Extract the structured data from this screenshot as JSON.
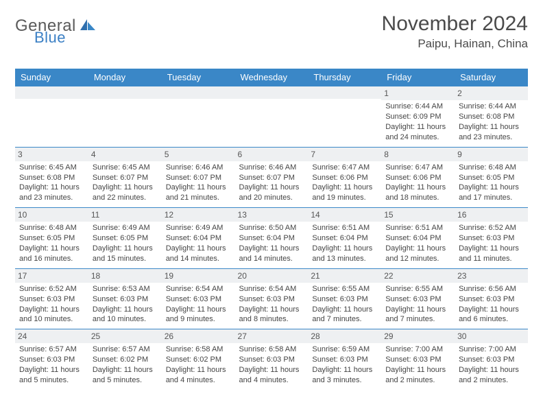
{
  "brand": {
    "word1": "General",
    "word2": "Blue"
  },
  "title": "November 2024",
  "location": "Paipu, Hainan, China",
  "colors": {
    "header_bg": "#3a87c7",
    "header_text": "#ffffff",
    "daynum_bg": "#eef0f2",
    "row_border": "#3a87c7",
    "brand_gray": "#5a5a5a",
    "brand_blue": "#3a7fc4",
    "text": "#444444",
    "page_bg": "#ffffff"
  },
  "fonts": {
    "title_pt": 30,
    "location_pt": 17,
    "dayhead_pt": 13,
    "daynum_pt": 12,
    "body_pt": 11
  },
  "day_headers": [
    "Sunday",
    "Monday",
    "Tuesday",
    "Wednesday",
    "Thursday",
    "Friday",
    "Saturday"
  ],
  "weeks": [
    [
      {
        "num": "",
        "lines": [
          "",
          "",
          "",
          ""
        ]
      },
      {
        "num": "",
        "lines": [
          "",
          "",
          "",
          ""
        ]
      },
      {
        "num": "",
        "lines": [
          "",
          "",
          "",
          ""
        ]
      },
      {
        "num": "",
        "lines": [
          "",
          "",
          "",
          ""
        ]
      },
      {
        "num": "",
        "lines": [
          "",
          "",
          "",
          ""
        ]
      },
      {
        "num": "1",
        "lines": [
          "Sunrise: 6:44 AM",
          "Sunset: 6:09 PM",
          "Daylight: 11 hours",
          "and 24 minutes."
        ]
      },
      {
        "num": "2",
        "lines": [
          "Sunrise: 6:44 AM",
          "Sunset: 6:08 PM",
          "Daylight: 11 hours",
          "and 23 minutes."
        ]
      }
    ],
    [
      {
        "num": "3",
        "lines": [
          "Sunrise: 6:45 AM",
          "Sunset: 6:08 PM",
          "Daylight: 11 hours",
          "and 23 minutes."
        ]
      },
      {
        "num": "4",
        "lines": [
          "Sunrise: 6:45 AM",
          "Sunset: 6:07 PM",
          "Daylight: 11 hours",
          "and 22 minutes."
        ]
      },
      {
        "num": "5",
        "lines": [
          "Sunrise: 6:46 AM",
          "Sunset: 6:07 PM",
          "Daylight: 11 hours",
          "and 21 minutes."
        ]
      },
      {
        "num": "6",
        "lines": [
          "Sunrise: 6:46 AM",
          "Sunset: 6:07 PM",
          "Daylight: 11 hours",
          "and 20 minutes."
        ]
      },
      {
        "num": "7",
        "lines": [
          "Sunrise: 6:47 AM",
          "Sunset: 6:06 PM",
          "Daylight: 11 hours",
          "and 19 minutes."
        ]
      },
      {
        "num": "8",
        "lines": [
          "Sunrise: 6:47 AM",
          "Sunset: 6:06 PM",
          "Daylight: 11 hours",
          "and 18 minutes."
        ]
      },
      {
        "num": "9",
        "lines": [
          "Sunrise: 6:48 AM",
          "Sunset: 6:05 PM",
          "Daylight: 11 hours",
          "and 17 minutes."
        ]
      }
    ],
    [
      {
        "num": "10",
        "lines": [
          "Sunrise: 6:48 AM",
          "Sunset: 6:05 PM",
          "Daylight: 11 hours",
          "and 16 minutes."
        ]
      },
      {
        "num": "11",
        "lines": [
          "Sunrise: 6:49 AM",
          "Sunset: 6:05 PM",
          "Daylight: 11 hours",
          "and 15 minutes."
        ]
      },
      {
        "num": "12",
        "lines": [
          "Sunrise: 6:49 AM",
          "Sunset: 6:04 PM",
          "Daylight: 11 hours",
          "and 14 minutes."
        ]
      },
      {
        "num": "13",
        "lines": [
          "Sunrise: 6:50 AM",
          "Sunset: 6:04 PM",
          "Daylight: 11 hours",
          "and 14 minutes."
        ]
      },
      {
        "num": "14",
        "lines": [
          "Sunrise: 6:51 AM",
          "Sunset: 6:04 PM",
          "Daylight: 11 hours",
          "and 13 minutes."
        ]
      },
      {
        "num": "15",
        "lines": [
          "Sunrise: 6:51 AM",
          "Sunset: 6:04 PM",
          "Daylight: 11 hours",
          "and 12 minutes."
        ]
      },
      {
        "num": "16",
        "lines": [
          "Sunrise: 6:52 AM",
          "Sunset: 6:03 PM",
          "Daylight: 11 hours",
          "and 11 minutes."
        ]
      }
    ],
    [
      {
        "num": "17",
        "lines": [
          "Sunrise: 6:52 AM",
          "Sunset: 6:03 PM",
          "Daylight: 11 hours",
          "and 10 minutes."
        ]
      },
      {
        "num": "18",
        "lines": [
          "Sunrise: 6:53 AM",
          "Sunset: 6:03 PM",
          "Daylight: 11 hours",
          "and 10 minutes."
        ]
      },
      {
        "num": "19",
        "lines": [
          "Sunrise: 6:54 AM",
          "Sunset: 6:03 PM",
          "Daylight: 11 hours",
          "and 9 minutes."
        ]
      },
      {
        "num": "20",
        "lines": [
          "Sunrise: 6:54 AM",
          "Sunset: 6:03 PM",
          "Daylight: 11 hours",
          "and 8 minutes."
        ]
      },
      {
        "num": "21",
        "lines": [
          "Sunrise: 6:55 AM",
          "Sunset: 6:03 PM",
          "Daylight: 11 hours",
          "and 7 minutes."
        ]
      },
      {
        "num": "22",
        "lines": [
          "Sunrise: 6:55 AM",
          "Sunset: 6:03 PM",
          "Daylight: 11 hours",
          "and 7 minutes."
        ]
      },
      {
        "num": "23",
        "lines": [
          "Sunrise: 6:56 AM",
          "Sunset: 6:03 PM",
          "Daylight: 11 hours",
          "and 6 minutes."
        ]
      }
    ],
    [
      {
        "num": "24",
        "lines": [
          "Sunrise: 6:57 AM",
          "Sunset: 6:03 PM",
          "Daylight: 11 hours",
          "and 5 minutes."
        ]
      },
      {
        "num": "25",
        "lines": [
          "Sunrise: 6:57 AM",
          "Sunset: 6:02 PM",
          "Daylight: 11 hours",
          "and 5 minutes."
        ]
      },
      {
        "num": "26",
        "lines": [
          "Sunrise: 6:58 AM",
          "Sunset: 6:02 PM",
          "Daylight: 11 hours",
          "and 4 minutes."
        ]
      },
      {
        "num": "27",
        "lines": [
          "Sunrise: 6:58 AM",
          "Sunset: 6:03 PM",
          "Daylight: 11 hours",
          "and 4 minutes."
        ]
      },
      {
        "num": "28",
        "lines": [
          "Sunrise: 6:59 AM",
          "Sunset: 6:03 PM",
          "Daylight: 11 hours",
          "and 3 minutes."
        ]
      },
      {
        "num": "29",
        "lines": [
          "Sunrise: 7:00 AM",
          "Sunset: 6:03 PM",
          "Daylight: 11 hours",
          "and 2 minutes."
        ]
      },
      {
        "num": "30",
        "lines": [
          "Sunrise: 7:00 AM",
          "Sunset: 6:03 PM",
          "Daylight: 11 hours",
          "and 2 minutes."
        ]
      }
    ]
  ]
}
